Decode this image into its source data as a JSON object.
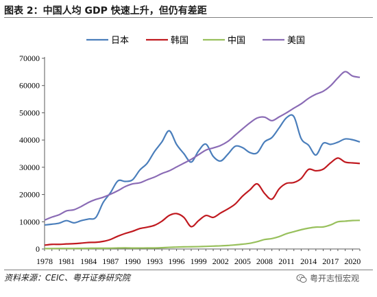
{
  "header": {
    "title": "图表 2：中国人均 GDP 快速上升，但仍有差距"
  },
  "footer": {
    "source": "资料来源：CEIC、粤开证券研究院",
    "watermark": "粤开志恒宏观"
  },
  "colors": {
    "japan": "#4a7ebb",
    "korea": "#c0191f",
    "china": "#98c05c",
    "usa": "#8a6bb5",
    "axis": "#595959"
  },
  "chart_data": {
    "type": "line",
    "title": "图表 2：中国人均 GDP 快速上升，但仍有差距",
    "xlabel": "",
    "ylabel": "",
    "xlim": [
      1978,
      2021
    ],
    "ylim": [
      0,
      70000
    ],
    "yticks": [
      0,
      10000,
      20000,
      30000,
      40000,
      50000,
      60000,
      70000
    ],
    "xticks": [
      1978,
      1981,
      1984,
      1987,
      1990,
      1993,
      1996,
      1999,
      2002,
      2005,
      2008,
      2011,
      2014,
      2017,
      2020
    ],
    "grid": false,
    "legend_position": "top",
    "x": [
      1978,
      1979,
      1980,
      1981,
      1982,
      1983,
      1984,
      1985,
      1986,
      1987,
      1988,
      1989,
      1990,
      1991,
      1992,
      1993,
      1994,
      1995,
      1996,
      1997,
      1998,
      1999,
      2000,
      2001,
      2002,
      2003,
      2004,
      2005,
      2006,
      2007,
      2008,
      2009,
      2010,
      2011,
      2012,
      2013,
      2014,
      2015,
      2016,
      2017,
      2018,
      2019,
      2020,
      2021
    ],
    "series": [
      {
        "name": "日本",
        "color_key": "japan",
        "values": [
          8800,
          9100,
          9500,
          10400,
          9600,
          10400,
          11000,
          11600,
          17100,
          20700,
          25000,
          24800,
          25400,
          29000,
          31500,
          35800,
          39300,
          43400,
          38400,
          35000,
          31900,
          36000,
          38500,
          34000,
          32300,
          34800,
          37700,
          37200,
          35400,
          35300,
          39300,
          40900,
          44500,
          48200,
          48600,
          40500,
          38100,
          34500,
          38800,
          38400,
          39200,
          40400,
          40100,
          39300
        ]
      },
      {
        "name": "韩国",
        "color_key": "korea",
        "values": [
          1400,
          1700,
          1700,
          1850,
          1950,
          2150,
          2400,
          2450,
          2800,
          3500,
          4700,
          5700,
          6500,
          7500,
          8000,
          8700,
          10200,
          12300,
          13000,
          11600,
          8200,
          10400,
          12300,
          11600,
          13200,
          14700,
          16500,
          19400,
          21700,
          23900,
          20400,
          18300,
          22100,
          24100,
          24400,
          25900,
          29200,
          28700,
          29300,
          31600,
          33400,
          31900,
          31600,
          31400
        ]
      },
      {
        "name": "中国",
        "color_key": "china",
        "values": [
          160,
          180,
          200,
          200,
          210,
          230,
          260,
          300,
          280,
          300,
          370,
          410,
          350,
          360,
          370,
          380,
          470,
          610,
          710,
          780,
          820,
          870,
          960,
          1060,
          1150,
          1290,
          1510,
          1760,
          2100,
          2700,
          3470,
          3830,
          4550,
          5620,
          6340,
          7080,
          7650,
          8030,
          8090,
          8820,
          9980,
          10220,
          10450,
          10500
        ]
      },
      {
        "name": "美国",
        "color_key": "usa",
        "values": [
          10600,
          11700,
          12600,
          14000,
          14400,
          15600,
          17100,
          18200,
          19000,
          20100,
          21400,
          22900,
          23900,
          24300,
          25400,
          26400,
          27700,
          28700,
          30100,
          31500,
          32900,
          34600,
          36300,
          37100,
          38000,
          39500,
          41800,
          44100,
          46300,
          48100,
          48400,
          47100,
          48500,
          50000,
          51700,
          53300,
          55300,
          56800,
          57900,
          59900,
          62800,
          65100,
          63500,
          63000
        ]
      }
    ]
  }
}
